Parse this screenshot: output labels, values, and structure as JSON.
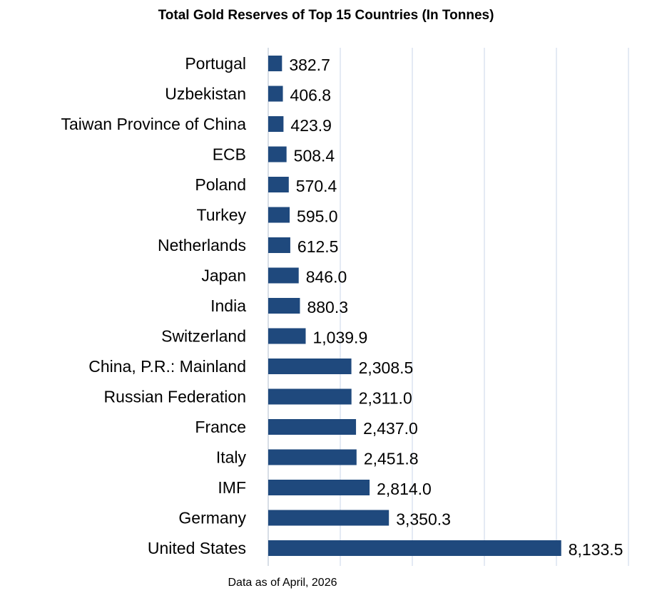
{
  "chart_data": {
    "type": "bar",
    "orientation": "horizontal",
    "title": "Total Gold Reserves of Top 15 Countries (In Tonnes)",
    "footnote": "Data as of April, 2026",
    "xlabel": "",
    "ylabel": "",
    "categories": [
      "Portugal",
      "Uzbekistan",
      "Taiwan Province of China",
      "ECB",
      "Poland",
      "Turkey",
      "Netherlands",
      "Japan",
      "India",
      "Switzerland",
      "China, P.R.: Mainland",
      "Russian Federation",
      "France",
      "Italy",
      "IMF",
      "Germany",
      "United States"
    ],
    "values": [
      382.7,
      406.8,
      423.9,
      508.4,
      570.4,
      595.0,
      612.5,
      846.0,
      880.3,
      1039.9,
      2308.5,
      2311.0,
      2437.0,
      2451.8,
      2814.0,
      3350.3,
      8133.5
    ],
    "value_labels": [
      "382.7",
      "406.8",
      "423.9",
      "508.4",
      "570.4",
      "595.0",
      "612.5",
      "846.0",
      "880.3",
      "1,039.9",
      "2,308.5",
      "2,311.0",
      "2,437.0",
      "2,451.8",
      "2,814.0",
      "3,350.3",
      "8,133.5"
    ],
    "xlim": [
      0,
      10000
    ],
    "grid": true,
    "grid_step": 2000,
    "bar_color": "#1F497D",
    "grid_color": "#c9d6e8"
  }
}
